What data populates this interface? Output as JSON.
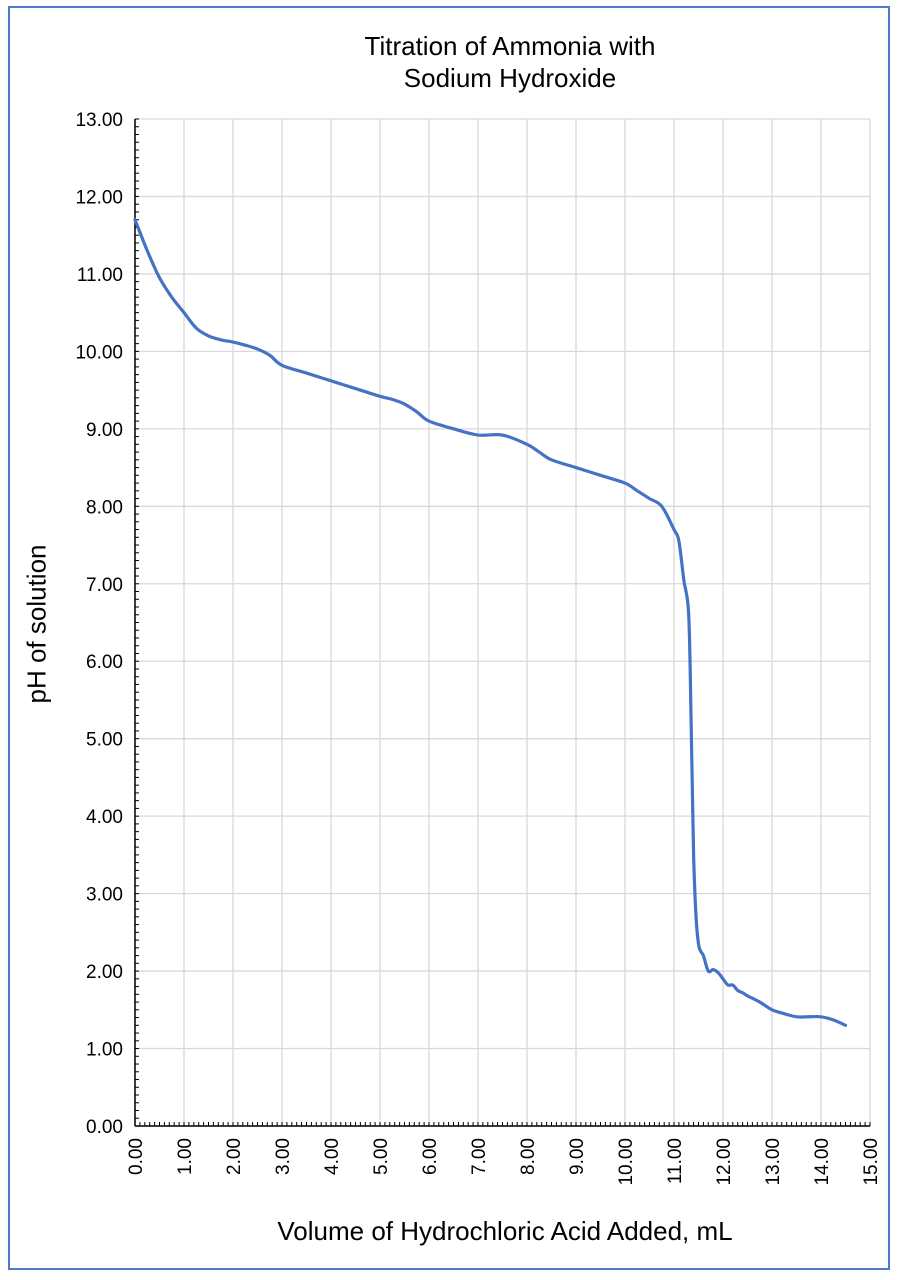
{
  "chart_data": {
    "type": "line",
    "title": [
      "Titration of Ammonia with",
      "Sodium Hydroxide"
    ],
    "xlabel": "Volume of Hydrochloric Acid Added, mL",
    "ylabel": "pH of solution",
    "xlim": [
      0,
      15
    ],
    "ylim": [
      0,
      13
    ],
    "x_ticks": [
      "0.00",
      "1.00",
      "2.00",
      "3.00",
      "4.00",
      "5.00",
      "6.00",
      "7.00",
      "8.00",
      "9.00",
      "10.00",
      "11.00",
      "12.00",
      "13.00",
      "14.00",
      "15.00"
    ],
    "y_ticks": [
      "0.00",
      "1.00",
      "2.00",
      "3.00",
      "4.00",
      "5.00",
      "6.00",
      "7.00",
      "8.00",
      "9.00",
      "10.00",
      "11.00",
      "12.00",
      "13.00"
    ],
    "grid": true,
    "line_color": "#4472c4",
    "series": [
      {
        "x": [
          0.0,
          0.25,
          0.5,
          0.75,
          1.0,
          1.25,
          1.5,
          1.75,
          2.0,
          2.25,
          2.5,
          2.75,
          3.0,
          3.5,
          4.0,
          4.5,
          5.0,
          5.25,
          5.5,
          5.75,
          6.0,
          6.5,
          7.0,
          7.5,
          8.0,
          8.25,
          8.5,
          9.0,
          9.5,
          10.0,
          10.25,
          10.5,
          10.75,
          11.0,
          11.1,
          11.2,
          11.3,
          11.35,
          11.4,
          11.45,
          11.5,
          11.55,
          11.6,
          11.7,
          11.8,
          11.9,
          12.0,
          12.1,
          12.2,
          12.3,
          12.4,
          12.5,
          12.75,
          13.0,
          13.25,
          13.5,
          13.75,
          14.0,
          14.25,
          14.5
        ],
        "y": [
          11.7,
          11.3,
          10.95,
          10.7,
          10.5,
          10.3,
          10.2,
          10.15,
          10.12,
          10.08,
          10.03,
          9.95,
          9.82,
          9.72,
          9.62,
          9.52,
          9.42,
          9.38,
          9.32,
          9.22,
          9.1,
          9.0,
          8.92,
          8.92,
          8.8,
          8.7,
          8.6,
          8.5,
          8.4,
          8.3,
          8.2,
          8.1,
          8.0,
          7.7,
          7.55,
          7.05,
          6.6,
          5.2,
          3.5,
          2.7,
          2.35,
          2.25,
          2.2,
          2.0,
          2.02,
          1.98,
          1.9,
          1.82,
          1.82,
          1.75,
          1.72,
          1.68,
          1.6,
          1.5,
          1.45,
          1.41,
          1.41,
          1.41,
          1.37,
          1.3
        ]
      }
    ]
  }
}
